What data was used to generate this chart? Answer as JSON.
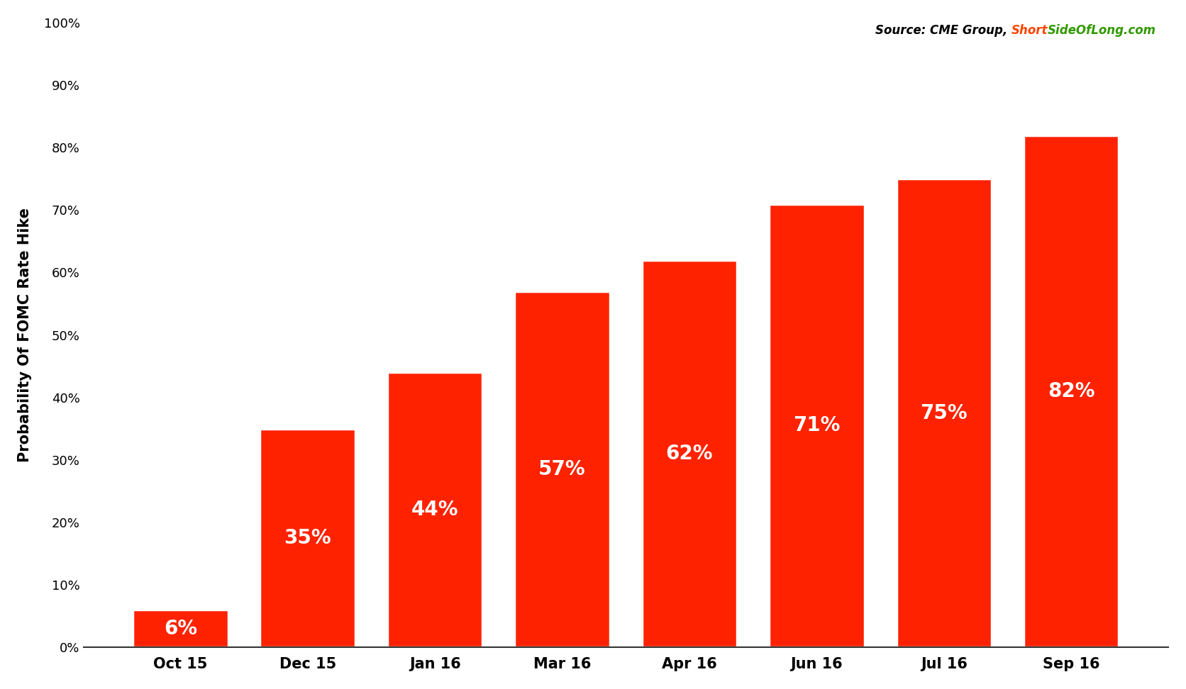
{
  "categories": [
    "Oct 15",
    "Dec 15",
    "Jan 16",
    "Mar 16",
    "Apr 16",
    "Jun 16",
    "Jul 16",
    "Sep 16"
  ],
  "values": [
    6,
    35,
    44,
    57,
    62,
    71,
    75,
    82
  ],
  "bar_color": "#FF2200",
  "bar_edge_color": "#FFFFFF",
  "bar_edge_width": 2.5,
  "ylabel": "Probability Of FOMC Rate Hike",
  "ylim": [
    0,
    100
  ],
  "yticks": [
    0,
    10,
    20,
    30,
    40,
    50,
    60,
    70,
    80,
    90,
    100
  ],
  "source_black": "Source: CME Group, ",
  "source_red": "Short",
  "source_green": "SideOfLong.com",
  "source_color_black": "#000000",
  "source_color_red": "#FF4400",
  "source_color_green": "#339900",
  "label_color": "#FFFFFF",
  "label_fontsize": 20,
  "label_fontweight": "bold",
  "ylabel_fontsize": 15,
  "ylabel_fontweight": "bold",
  "xtick_fontsize": 15,
  "ytick_fontsize": 13,
  "background_color": "#FFFFFF",
  "source_fontsize": 12,
  "bar_width": 0.75
}
